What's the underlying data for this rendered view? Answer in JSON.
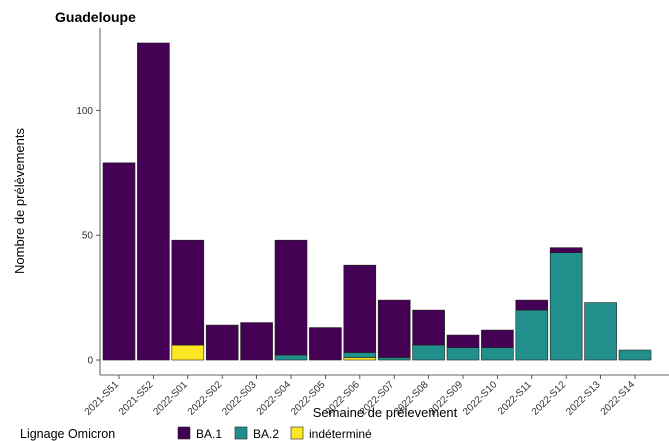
{
  "chart_data": {
    "type": "bar",
    "stacked": true,
    "title": "Guadeloupe",
    "xlabel": "Semaine de prélevement",
    "ylabel": "Nombre de prélèvements",
    "ylim": [
      -6,
      133
    ],
    "yticks": [
      0,
      50,
      100
    ],
    "grid": false,
    "legend_position": "bottom-left",
    "legend_title": "Lignage Omicron",
    "categories": [
      "2021-S51",
      "2021-S52",
      "2022-S01",
      "2022-S02",
      "2022-S03",
      "2022-S04",
      "2022-S05",
      "2022-S06",
      "2022-S07",
      "2022-S08",
      "2022-S09",
      "2022-S10",
      "2022-S11",
      "2022-S12",
      "2022-S13",
      "2022-S14"
    ],
    "series": [
      {
        "name": "indéterminé",
        "color": "#FDE725",
        "values": [
          0,
          0,
          6,
          0,
          0,
          0,
          0,
          1,
          0,
          0,
          0,
          0,
          0,
          0,
          0,
          0
        ]
      },
      {
        "name": "BA.2",
        "color": "#21908C",
        "values": [
          0,
          0,
          0,
          0,
          0,
          2,
          0,
          2,
          1,
          6,
          5,
          5,
          20,
          43,
          23,
          4
        ]
      },
      {
        "name": "BA.1",
        "color": "#440154",
        "values": [
          79,
          127,
          42,
          14,
          15,
          46,
          13,
          35,
          23,
          14,
          5,
          7,
          4,
          2,
          0,
          0
        ]
      }
    ],
    "legend_order": [
      "BA.1",
      "BA.2",
      "indéterminé"
    ]
  }
}
